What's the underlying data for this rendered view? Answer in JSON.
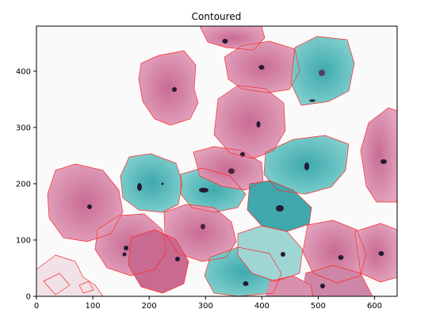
{
  "figure": {
    "title": "Contoured"
  },
  "axes": {
    "x_ticks": [
      0,
      100,
      200,
      300,
      400,
      500,
      600
    ],
    "y_ticks": [
      0,
      100,
      200,
      300,
      400
    ],
    "x_range": [
      0,
      640
    ],
    "y_range": [
      480,
      0
    ]
  },
  "image": {
    "subject": "microscopy of stained squamous cells",
    "colors": {
      "pink_cell": "#d98aa8",
      "pink_cell_dark": "#b9557f",
      "cyan_cell": "#5fc0bf",
      "cyan_cell_dark": "#2f9ea6",
      "nucleus": "#241a34",
      "contour": "#ff2a2a",
      "background": "#fbfafb"
    }
  }
}
